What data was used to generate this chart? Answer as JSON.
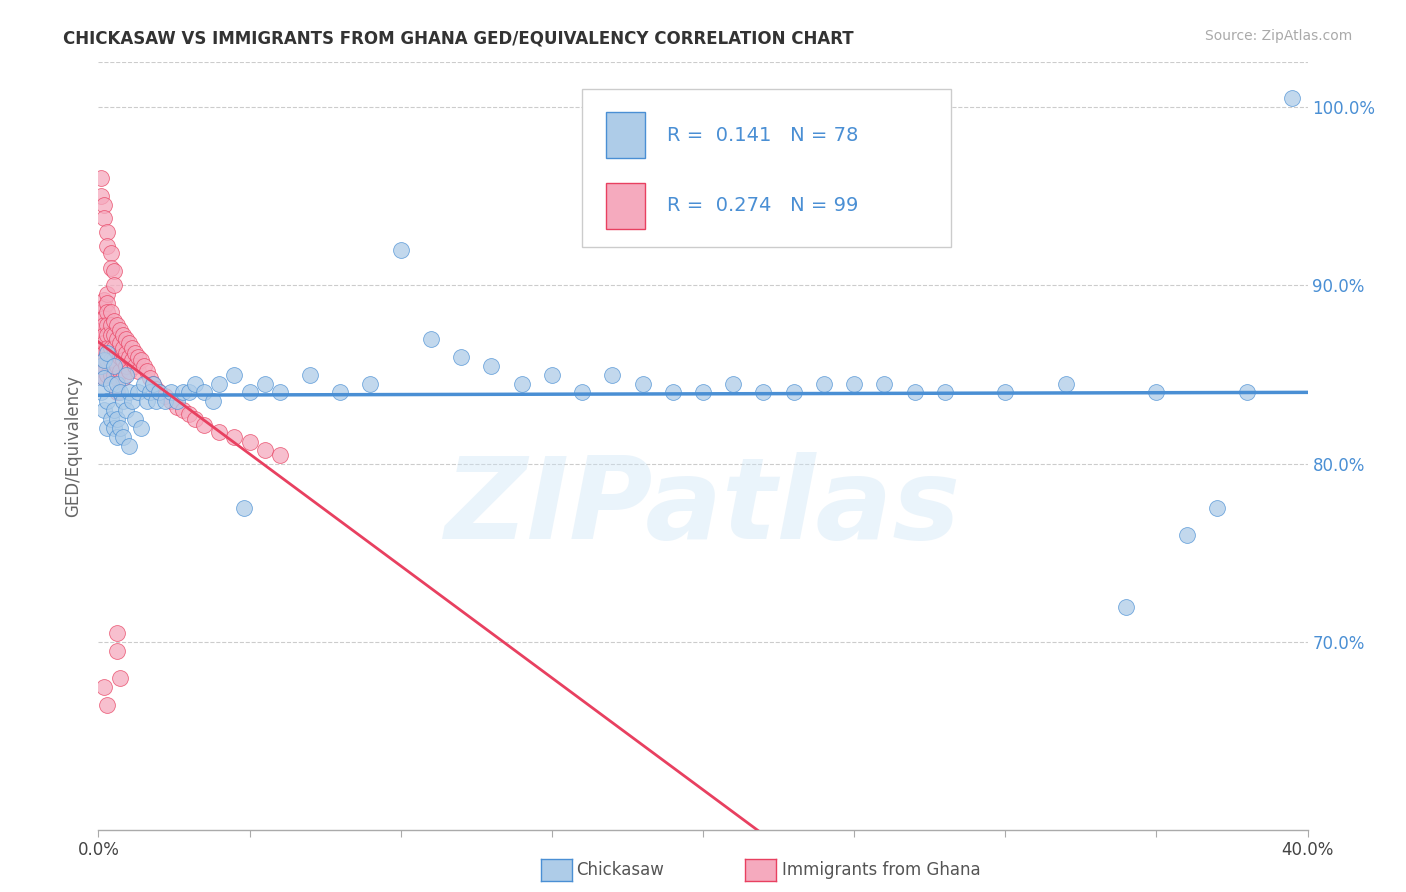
{
  "title": "CHICKASAW VS IMMIGRANTS FROM GHANA GED/EQUIVALENCY CORRELATION CHART",
  "source": "Source: ZipAtlas.com",
  "ylabel": "GED/Equivalency",
  "r_chickasaw": "0.141",
  "n_chickasaw": "78",
  "r_ghana": "0.274",
  "n_ghana": "99",
  "chickasaw_color": "#aecce8",
  "ghana_color": "#f5aabe",
  "chickasaw_line_color": "#4a8fd4",
  "ghana_line_color": "#e84060",
  "watermark": "ZIPatlas",
  "xlim": [
    0.0,
    0.4
  ],
  "ylim": [
    0.595,
    1.025
  ],
  "yticks": [
    0.7,
    0.8,
    0.9,
    1.0
  ],
  "xticks": [
    0.0,
    0.05,
    0.1,
    0.15,
    0.2,
    0.25,
    0.3,
    0.35,
    0.4
  ],
  "chickasaw_x": [
    0.001,
    0.001,
    0.002,
    0.002,
    0.002,
    0.003,
    0.003,
    0.003,
    0.004,
    0.004,
    0.005,
    0.005,
    0.005,
    0.006,
    0.006,
    0.006,
    0.007,
    0.007,
    0.008,
    0.008,
    0.009,
    0.009,
    0.01,
    0.01,
    0.011,
    0.012,
    0.013,
    0.014,
    0.015,
    0.016,
    0.017,
    0.018,
    0.019,
    0.02,
    0.022,
    0.024,
    0.026,
    0.028,
    0.03,
    0.032,
    0.035,
    0.038,
    0.04,
    0.045,
    0.05,
    0.055,
    0.06,
    0.07,
    0.08,
    0.09,
    0.1,
    0.11,
    0.12,
    0.13,
    0.14,
    0.15,
    0.16,
    0.17,
    0.18,
    0.19,
    0.2,
    0.21,
    0.22,
    0.23,
    0.24,
    0.25,
    0.26,
    0.27,
    0.28,
    0.3,
    0.32,
    0.34,
    0.35,
    0.36,
    0.37,
    0.38,
    0.395,
    0.048
  ],
  "chickasaw_y": [
    0.855,
    0.84,
    0.858,
    0.83,
    0.848,
    0.862,
    0.835,
    0.82,
    0.845,
    0.825,
    0.855,
    0.83,
    0.82,
    0.845,
    0.825,
    0.815,
    0.84,
    0.82,
    0.835,
    0.815,
    0.85,
    0.83,
    0.84,
    0.81,
    0.835,
    0.825,
    0.84,
    0.82,
    0.845,
    0.835,
    0.84,
    0.845,
    0.835,
    0.84,
    0.835,
    0.84,
    0.835,
    0.84,
    0.84,
    0.845,
    0.84,
    0.835,
    0.845,
    0.85,
    0.84,
    0.845,
    0.84,
    0.85,
    0.84,
    0.845,
    0.92,
    0.87,
    0.86,
    0.855,
    0.845,
    0.85,
    0.84,
    0.85,
    0.845,
    0.84,
    0.84,
    0.845,
    0.84,
    0.84,
    0.845,
    0.845,
    0.845,
    0.84,
    0.84,
    0.84,
    0.845,
    0.72,
    0.84,
    0.76,
    0.775,
    0.84,
    1.005,
    0.775
  ],
  "ghana_x": [
    0.001,
    0.001,
    0.001,
    0.001,
    0.001,
    0.001,
    0.001,
    0.001,
    0.001,
    0.001,
    0.002,
    0.002,
    0.002,
    0.002,
    0.002,
    0.002,
    0.002,
    0.002,
    0.002,
    0.002,
    0.003,
    0.003,
    0.003,
    0.003,
    0.003,
    0.003,
    0.003,
    0.003,
    0.004,
    0.004,
    0.004,
    0.004,
    0.004,
    0.004,
    0.005,
    0.005,
    0.005,
    0.005,
    0.005,
    0.006,
    0.006,
    0.006,
    0.006,
    0.006,
    0.006,
    0.007,
    0.007,
    0.007,
    0.007,
    0.008,
    0.008,
    0.008,
    0.008,
    0.009,
    0.009,
    0.009,
    0.01,
    0.01,
    0.01,
    0.011,
    0.011,
    0.012,
    0.012,
    0.013,
    0.013,
    0.014,
    0.015,
    0.016,
    0.017,
    0.018,
    0.019,
    0.02,
    0.022,
    0.024,
    0.026,
    0.028,
    0.03,
    0.032,
    0.035,
    0.04,
    0.045,
    0.05,
    0.055,
    0.06,
    0.001,
    0.001,
    0.002,
    0.002,
    0.003,
    0.003,
    0.004,
    0.004,
    0.005,
    0.005,
    0.006,
    0.006,
    0.007,
    0.002,
    0.003
  ],
  "ghana_y": [
    0.885,
    0.88,
    0.875,
    0.87,
    0.868,
    0.865,
    0.862,
    0.858,
    0.855,
    0.85,
    0.892,
    0.888,
    0.882,
    0.878,
    0.872,
    0.868,
    0.862,
    0.858,
    0.852,
    0.848,
    0.895,
    0.89,
    0.885,
    0.878,
    0.872,
    0.865,
    0.858,
    0.85,
    0.885,
    0.878,
    0.872,
    0.865,
    0.858,
    0.85,
    0.88,
    0.872,
    0.865,
    0.858,
    0.85,
    0.878,
    0.87,
    0.862,
    0.855,
    0.848,
    0.84,
    0.875,
    0.868,
    0.86,
    0.852,
    0.872,
    0.865,
    0.858,
    0.848,
    0.87,
    0.862,
    0.855,
    0.868,
    0.86,
    0.852,
    0.865,
    0.858,
    0.862,
    0.855,
    0.86,
    0.852,
    0.858,
    0.855,
    0.852,
    0.848,
    0.845,
    0.842,
    0.84,
    0.838,
    0.835,
    0.832,
    0.83,
    0.828,
    0.825,
    0.822,
    0.818,
    0.815,
    0.812,
    0.808,
    0.805,
    0.96,
    0.95,
    0.945,
    0.938,
    0.93,
    0.922,
    0.918,
    0.91,
    0.908,
    0.9,
    0.705,
    0.695,
    0.68,
    0.675,
    0.665
  ]
}
